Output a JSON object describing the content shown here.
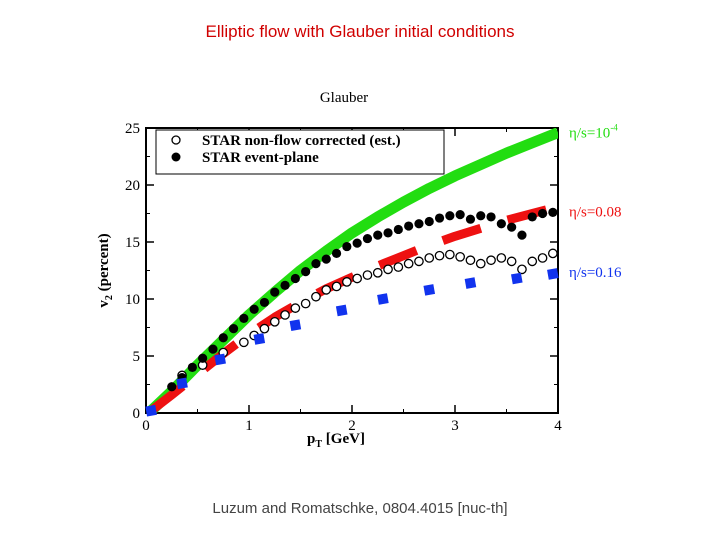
{
  "slide": {
    "title": "Elliptic flow with Glauber initial conditions",
    "caption": "Luzum and Romatschke, 0804.4015 [nuc-th]"
  },
  "chart_data": {
    "type": "scatter",
    "title": "Glauber",
    "xlabel": "p_T [GeV]",
    "ylabel": "v_2 (percent)",
    "xlim": [
      0,
      4
    ],
    "ylim": [
      0,
      25
    ],
    "xticks": [
      0,
      1,
      2,
      3,
      4
    ],
    "yticks": [
      0,
      5,
      10,
      15,
      20,
      25
    ],
    "legend_position": "top-left",
    "legend": [
      {
        "label": "STAR non-flow corrected (est.)",
        "marker": "open-circle"
      },
      {
        "label": "STAR event-plane",
        "marker": "filled-circle"
      }
    ],
    "series": [
      {
        "name": "STAR non-flow corrected (est.)",
        "kind": "points",
        "marker": "open-circle",
        "color": "#000000",
        "x": [
          0.35,
          0.55,
          0.75,
          0.95,
          1.05,
          1.15,
          1.25,
          1.35,
          1.45,
          1.55,
          1.65,
          1.75,
          1.85,
          1.95,
          2.05,
          2.15,
          2.25,
          2.35,
          2.45,
          2.55,
          2.65,
          2.75,
          2.85,
          2.95,
          3.05,
          3.15,
          3.25,
          3.35,
          3.45,
          3.55,
          3.65,
          3.75,
          3.85,
          3.95
        ],
        "y": [
          3.3,
          4.2,
          5.3,
          6.2,
          6.8,
          7.4,
          8.0,
          8.6,
          9.2,
          9.6,
          10.2,
          10.8,
          11.1,
          11.5,
          11.8,
          12.1,
          12.3,
          12.6,
          12.8,
          13.1,
          13.3,
          13.6,
          13.8,
          13.9,
          13.7,
          13.4,
          13.1,
          13.4,
          13.6,
          13.3,
          12.6,
          13.3,
          13.6,
          14.0
        ]
      },
      {
        "name": "STAR event-plane",
        "kind": "points",
        "marker": "filled-circle",
        "color": "#000000",
        "x": [
          0.25,
          0.35,
          0.45,
          0.55,
          0.65,
          0.75,
          0.85,
          0.95,
          1.05,
          1.15,
          1.25,
          1.35,
          1.45,
          1.55,
          1.65,
          1.75,
          1.85,
          1.95,
          2.05,
          2.15,
          2.25,
          2.35,
          2.45,
          2.55,
          2.65,
          2.75,
          2.85,
          2.95,
          3.05,
          3.15,
          3.25,
          3.35,
          3.45,
          3.55,
          3.65,
          3.75,
          3.85,
          3.95
        ],
        "y": [
          2.3,
          3.1,
          4.0,
          4.8,
          5.6,
          6.6,
          7.4,
          8.3,
          9.1,
          9.7,
          10.6,
          11.2,
          11.8,
          12.4,
          13.1,
          13.5,
          14.0,
          14.6,
          14.9,
          15.3,
          15.6,
          15.8,
          16.1,
          16.4,
          16.6,
          16.8,
          17.1,
          17.3,
          17.4,
          17.0,
          17.3,
          17.2,
          16.6,
          16.3,
          15.6,
          17.2,
          17.5,
          17.6
        ]
      },
      {
        "name": "η/s=10⁻⁴",
        "kind": "curve",
        "style": "thick-solid",
        "color": "#22dd11",
        "x": [
          0.05,
          0.25,
          0.5,
          0.75,
          1.0,
          1.25,
          1.5,
          1.75,
          2.0,
          2.25,
          2.5,
          2.75,
          3.0,
          3.25,
          3.5,
          3.75,
          4.0
        ],
        "y": [
          0.2,
          1.9,
          4.2,
          6.4,
          8.6,
          10.6,
          12.5,
          14.2,
          15.8,
          17.2,
          18.5,
          19.7,
          20.8,
          21.8,
          22.8,
          23.7,
          24.6
        ]
      },
      {
        "name": "η/s=0.08",
        "kind": "curve",
        "style": "thick-dashed",
        "color": "#ee1111",
        "x": [
          0.05,
          0.25,
          0.5,
          0.75,
          1.0,
          1.25,
          1.5,
          1.75,
          2.0,
          2.25,
          2.5,
          2.75,
          3.0,
          3.25,
          3.5,
          3.75,
          4.0
        ],
        "y": [
          0.2,
          1.6,
          3.4,
          5.2,
          6.9,
          8.4,
          9.7,
          10.9,
          11.9,
          12.9,
          13.8,
          14.7,
          15.5,
          16.2,
          16.9,
          17.5,
          18.1
        ]
      },
      {
        "name": "η/s=0.16",
        "kind": "points",
        "marker": "filled-square",
        "color": "#1133ee",
        "x": [
          0.05,
          0.35,
          0.72,
          1.1,
          1.45,
          1.9,
          2.3,
          2.75,
          3.15,
          3.6,
          3.95
        ],
        "y": [
          0.2,
          2.6,
          4.7,
          6.5,
          7.7,
          9.0,
          10.0,
          10.8,
          11.4,
          11.8,
          12.2
        ]
      }
    ],
    "curve_labels": [
      {
        "prefix": "η/s=10",
        "superscript": "-4",
        "color": "#22dd11"
      },
      {
        "prefix": "η/s=0.08",
        "superscript": "",
        "color": "#ee1111"
      },
      {
        "prefix": "η/s=0.16",
        "superscript": "",
        "color": "#1133ee"
      }
    ]
  }
}
